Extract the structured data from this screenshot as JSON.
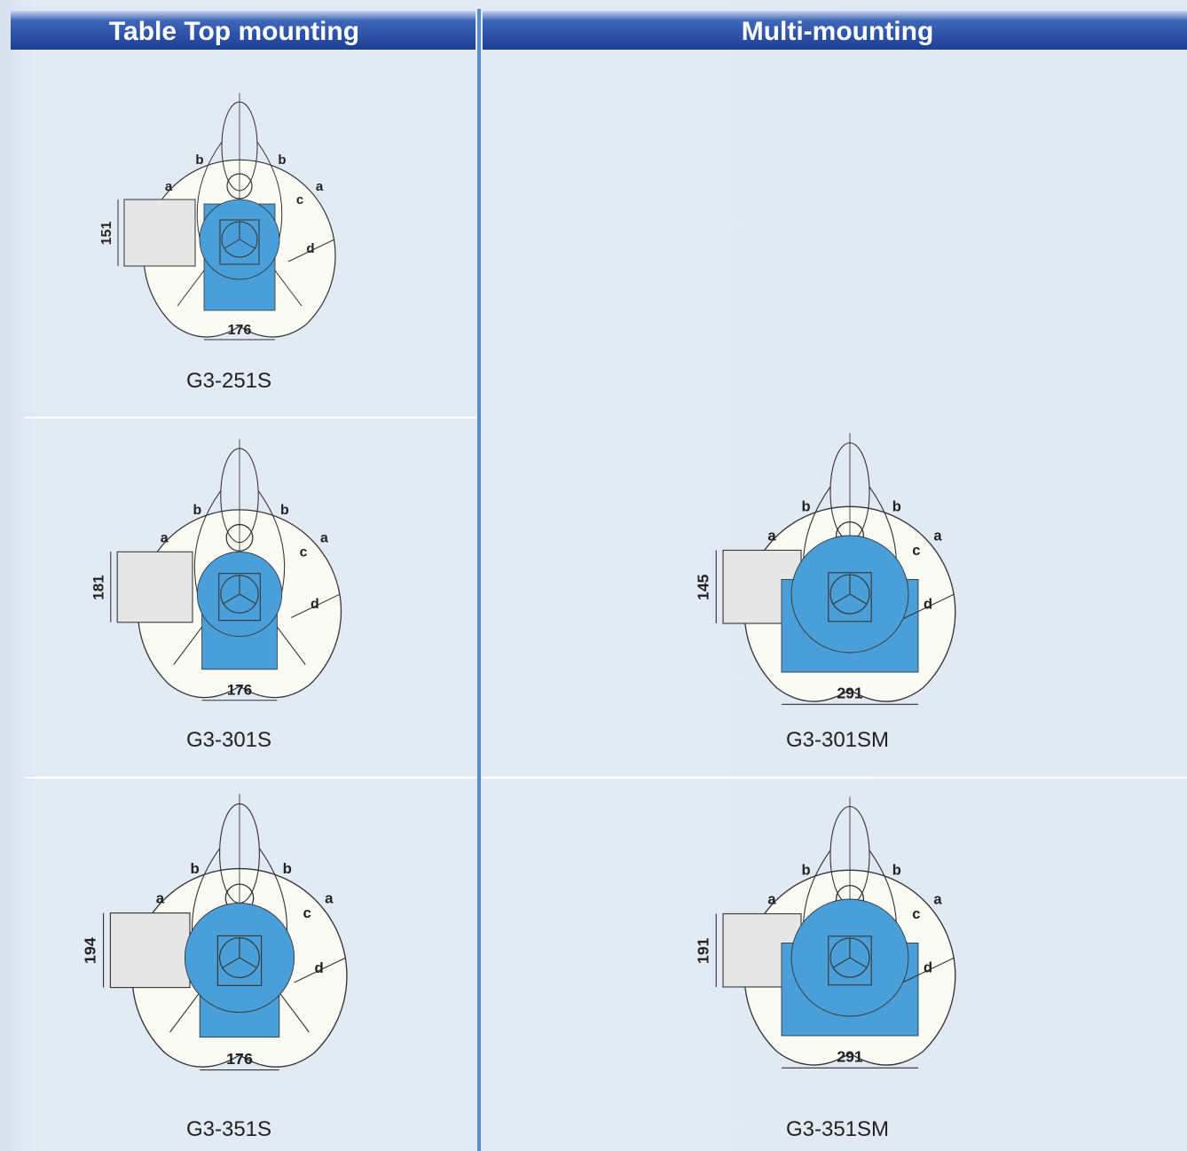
{
  "columns": [
    {
      "title": "Table Top mounting",
      "cells": [
        {
          "model": "G3-251S",
          "width_dim": 176,
          "height_dim": 151,
          "zone_labels": [
            "a",
            "b",
            "b",
            "c",
            "a",
            "d"
          ]
        },
        {
          "model": "G3-301S",
          "width_dim": 176,
          "height_dim": 181,
          "zone_labels": [
            "a",
            "b",
            "b",
            "c",
            "a",
            "d"
          ]
        },
        {
          "model": "G3-351S",
          "width_dim": 176,
          "height_dim": 194,
          "zone_labels": [
            "a",
            "b",
            "b",
            "c",
            "a",
            "d"
          ]
        }
      ]
    },
    {
      "title": "Multi-mounting",
      "cells": [
        {
          "model": "G3-301SM",
          "width_dim": 291,
          "height_dim": 145,
          "zone_labels": [
            "a",
            "b",
            "b",
            "c",
            "a",
            "d"
          ]
        },
        {
          "model": "G3-351SM",
          "width_dim": 291,
          "height_dim": 191,
          "zone_labels": [
            "a",
            "b",
            "b",
            "c",
            "a",
            "d"
          ]
        }
      ]
    }
  ]
}
